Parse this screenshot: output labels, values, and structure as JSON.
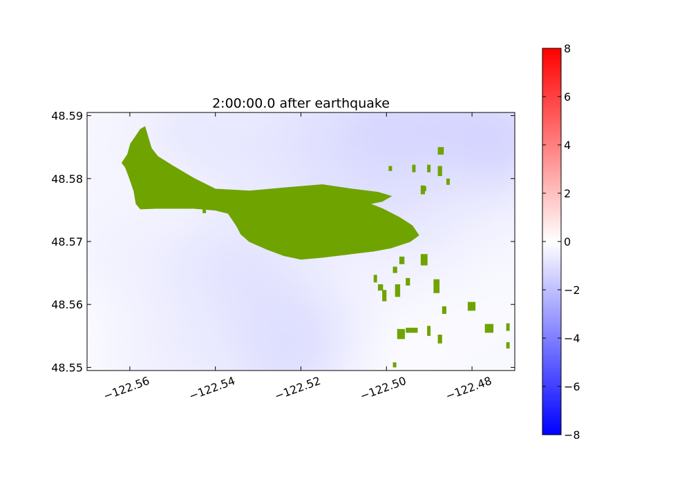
{
  "chart_data": {
    "type": "heatmap",
    "title": "2:00:00.0 after earthquake",
    "xlabel": "",
    "ylabel": "",
    "xlim": [
      -122.57,
      -122.47
    ],
    "ylim": [
      48.5495,
      48.5905
    ],
    "x_ticks": [
      {
        "value": -122.56,
        "label": "−122.56"
      },
      {
        "value": -122.54,
        "label": "−122.54"
      },
      {
        "value": -122.52,
        "label": "−122.52"
      },
      {
        "value": -122.5,
        "label": "−122.50"
      },
      {
        "value": -122.48,
        "label": "−122.48"
      }
    ],
    "y_ticks": [
      {
        "value": 48.59,
        "label": "48.59"
      },
      {
        "value": 48.58,
        "label": "48.58"
      },
      {
        "value": 48.57,
        "label": "48.57"
      },
      {
        "value": 48.56,
        "label": "48.56"
      },
      {
        "value": 48.55,
        "label": "48.55"
      }
    ],
    "grid": false,
    "colorbar": {
      "colormap": "bwr",
      "vmin": -8,
      "vmax": 8,
      "colors": [
        "#0000ff",
        "#ffffff",
        "#ff0000"
      ],
      "ticks": [
        {
          "value": 8,
          "label": "8"
        },
        {
          "value": 6,
          "label": "6"
        },
        {
          "value": 4,
          "label": "4"
        },
        {
          "value": 2,
          "label": "2"
        },
        {
          "value": 0,
          "label": "0"
        },
        {
          "value": -2,
          "label": "−2"
        },
        {
          "value": -4,
          "label": "−4"
        },
        {
          "value": -6,
          "label": "−6"
        },
        {
          "value": -8,
          "label": "−8"
        }
      ]
    },
    "land_color": "#6fa300",
    "field_samples": [
      {
        "lon": -122.565,
        "lat": 48.587,
        "value": -0.3
      },
      {
        "lon": -122.545,
        "lat": 48.588,
        "value": -0.8
      },
      {
        "lon": -122.52,
        "lat": 48.588,
        "value": -1.0
      },
      {
        "lon": -122.5,
        "lat": 48.588,
        "value": -1.4
      },
      {
        "lon": -122.485,
        "lat": 48.587,
        "value": -1.6
      },
      {
        "lon": -122.473,
        "lat": 48.586,
        "value": -1.5
      },
      {
        "lon": -122.49,
        "lat": 48.58,
        "value": -1.1
      },
      {
        "lon": -122.5,
        "lat": 48.576,
        "value": -1.2
      },
      {
        "lon": -122.51,
        "lat": 48.578,
        "value": -1.0
      },
      {
        "lon": -122.485,
        "lat": 48.572,
        "value": -0.7
      },
      {
        "lon": -122.473,
        "lat": 48.57,
        "value": -0.4
      },
      {
        "lon": -122.473,
        "lat": 48.562,
        "value": -0.2
      },
      {
        "lon": -122.49,
        "lat": 48.558,
        "value": -0.2
      },
      {
        "lon": -122.5,
        "lat": 48.552,
        "value": -0.1
      },
      {
        "lon": -122.515,
        "lat": 48.551,
        "value": -0.4
      },
      {
        "lon": -122.52,
        "lat": 48.556,
        "value": -1.0
      },
      {
        "lon": -122.525,
        "lat": 48.552,
        "value": -1.2
      },
      {
        "lon": -122.535,
        "lat": 48.556,
        "value": -1.0
      },
      {
        "lon": -122.54,
        "lat": 48.565,
        "value": -1.1
      },
      {
        "lon": -122.55,
        "lat": 48.56,
        "value": -0.7
      },
      {
        "lon": -122.56,
        "lat": 48.568,
        "value": -0.5
      },
      {
        "lon": -122.568,
        "lat": 48.555,
        "value": -0.1
      },
      {
        "lon": -122.568,
        "lat": 48.578,
        "value": -0.3
      },
      {
        "lon": -122.555,
        "lat": 48.553,
        "value": -0.4
      },
      {
        "lon": -122.545,
        "lat": 48.551,
        "value": -0.6
      },
      {
        "lon": -122.53,
        "lat": 48.566,
        "value": -0.9
      },
      {
        "lon": -122.505,
        "lat": 48.565,
        "value": -0.4
      },
      {
        "lon": -122.53,
        "lat": 48.583,
        "value": -0.8
      }
    ],
    "land_mask": {
      "main_island": [
        [
          -122.5605,
          48.5838
        ],
        [
          -122.5598,
          48.5855
        ],
        [
          -122.5585,
          48.5868
        ],
        [
          -122.5575,
          48.5878
        ],
        [
          -122.5565,
          48.5882
        ],
        [
          -122.5558,
          48.5866
        ],
        [
          -122.555,
          48.5848
        ],
        [
          -122.5535,
          48.5835
        ],
        [
          -122.55,
          48.582
        ],
        [
          -122.545,
          48.58
        ],
        [
          -122.54,
          48.5783
        ],
        [
          -122.532,
          48.578
        ],
        [
          -122.524,
          48.5785
        ],
        [
          -122.515,
          48.579
        ],
        [
          -122.508,
          48.5783
        ],
        [
          -122.502,
          48.5778
        ],
        [
          -122.499,
          48.5772
        ],
        [
          -122.501,
          48.5764
        ],
        [
          -122.504,
          48.576
        ],
        [
          -122.501,
          48.5752
        ],
        [
          -122.497,
          48.5738
        ],
        [
          -122.494,
          48.5725
        ],
        [
          -122.4925,
          48.571
        ],
        [
          -122.4945,
          48.57
        ],
        [
          -122.499,
          48.569
        ],
        [
          -122.503,
          48.5685
        ],
        [
          -122.509,
          48.568
        ],
        [
          -122.515,
          48.5675
        ],
        [
          -122.52,
          48.5672
        ],
        [
          -122.524,
          48.5678
        ],
        [
          -122.528,
          48.5688
        ],
        [
          -122.532,
          48.57
        ],
        [
          -122.534,
          48.5712
        ],
        [
          -122.535,
          48.5725
        ],
        [
          -122.537,
          48.5745
        ],
        [
          -122.54,
          48.575
        ],
        [
          -122.545,
          48.5753
        ],
        [
          -122.55,
          48.5753
        ],
        [
          -122.554,
          48.5753
        ],
        [
          -122.5575,
          48.5752
        ],
        [
          -122.5585,
          48.576
        ],
        [
          -122.559,
          48.578
        ],
        [
          -122.56,
          48.58
        ],
        [
          -122.561,
          48.5818
        ],
        [
          -122.5618,
          48.5825
        ]
      ],
      "islets": [
        [
          -122.497,
          48.5664,
          0.0012,
          0.0012
        ],
        [
          -122.4985,
          48.565,
          0.001,
          0.001
        ],
        [
          -122.503,
          48.5635,
          0.0008,
          0.0012
        ],
        [
          -122.502,
          48.5622,
          0.0012,
          0.001
        ],
        [
          -122.501,
          48.5605,
          0.001,
          0.0018
        ],
        [
          -122.498,
          48.5612,
          0.0012,
          0.002
        ],
        [
          -122.4955,
          48.563,
          0.001,
          0.0012
        ],
        [
          -122.492,
          48.5662,
          0.0016,
          0.0018
        ],
        [
          -122.489,
          48.5618,
          0.0014,
          0.0022
        ],
        [
          -122.487,
          48.5585,
          0.001,
          0.0012
        ],
        [
          -122.481,
          48.559,
          0.0018,
          0.0014
        ],
        [
          -122.477,
          48.5555,
          0.002,
          0.0014
        ],
        [
          -122.472,
          48.5558,
          0.0008,
          0.0012
        ],
        [
          -122.4975,
          48.5545,
          0.0018,
          0.0016
        ],
        [
          -122.4955,
          48.5555,
          0.0028,
          0.0008
        ],
        [
          -122.4905,
          48.555,
          0.0008,
          0.0016
        ],
        [
          -122.488,
          48.5538,
          0.001,
          0.0014
        ],
        [
          -122.492,
          48.5775,
          0.001,
          0.0014
        ],
        [
          -122.4915,
          48.578,
          0.0008,
          0.0008
        ],
        [
          -122.494,
          48.581,
          0.0008,
          0.0012
        ],
        [
          -122.4905,
          48.581,
          0.0008,
          0.0012
        ],
        [
          -122.488,
          48.5838,
          0.0014,
          0.0012
        ],
        [
          -122.488,
          48.5804,
          0.001,
          0.0016
        ],
        [
          -122.486,
          48.579,
          0.0008,
          0.001
        ],
        [
          -122.4995,
          48.5812,
          0.0008,
          0.0008
        ],
        [
          -122.543,
          48.5745,
          0.0008,
          0.001
        ],
        [
          -122.546,
          48.5755,
          0.0008,
          0.001
        ],
        [
          -122.4985,
          48.55,
          0.0008,
          0.0008
        ],
        [
          -122.472,
          48.553,
          0.0008,
          0.001
        ]
      ]
    }
  }
}
